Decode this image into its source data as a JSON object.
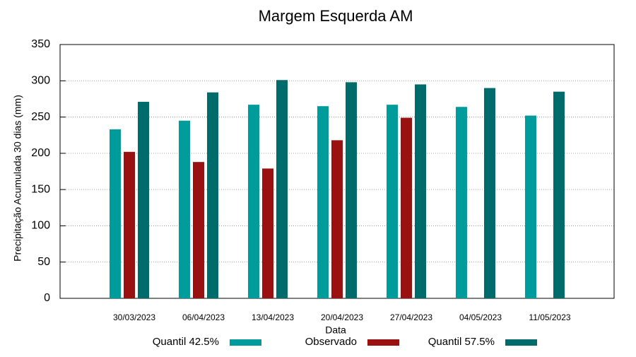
{
  "chart_data": {
    "type": "bar",
    "title": "Margem Esquerda AM",
    "x_label": "Data",
    "y_label": "Precipitação Acumulada 30 dias (mm)",
    "categories": [
      "30/03/2023",
      "06/04/2023",
      "13/04/2023",
      "20/04/2023",
      "27/04/2023",
      "04/05/2023",
      "11/05/2023"
    ],
    "series": [
      {
        "name": "Quantil 42.5%",
        "color": "#009b9b",
        "values": [
          233,
          245,
          267,
          265,
          267,
          264,
          252
        ]
      },
      {
        "name": "Observado",
        "color": "#991111",
        "values": [
          202,
          188,
          179,
          218,
          249,
          null,
          null
        ]
      },
      {
        "name": "Quantil 57.5%",
        "color": "#006b6b",
        "values": [
          271,
          284,
          301,
          298,
          295,
          290,
          285
        ]
      }
    ],
    "ylim": [
      0,
      350
    ],
    "yticks": [
      0,
      50,
      100,
      150,
      200,
      250,
      300,
      350
    ],
    "grid": true,
    "legend": "bottom"
  }
}
